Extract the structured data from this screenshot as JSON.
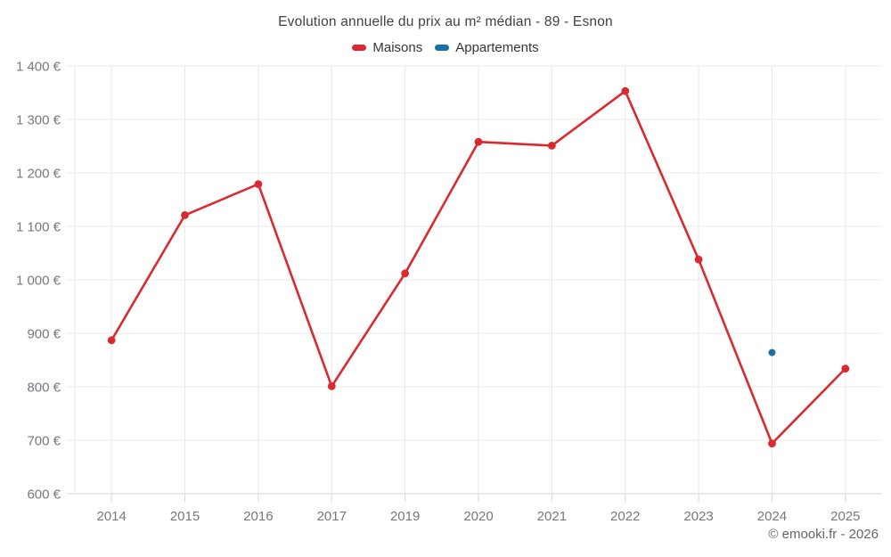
{
  "title": "Evolution annuelle du prix au m² médian - 89 - Esnon",
  "footer": "© emooki.fr - 2026",
  "legend": [
    {
      "label": "Maisons",
      "color": "#da2a2f"
    },
    {
      "label": "Appartements",
      "color": "#1d6fa5"
    }
  ],
  "colors": {
    "maisons_red": "#da2a2f",
    "appartements_blue": "#1d6fa5",
    "grid": "#e8e8e8",
    "axis": "#d6d6d6",
    "tick_label": "#75787c"
  },
  "chart_data": {
    "type": "line",
    "title": "Evolution annuelle du prix au m² médian - 89 - Esnon",
    "categories": [
      "2014",
      "2015",
      "2016",
      "2017",
      "2019",
      "2020",
      "2021",
      "2022",
      "2023",
      "2024",
      "2025"
    ],
    "series": [
      {
        "name": "Maisons",
        "type": "line",
        "color": "#da2a2f",
        "values": [
          887,
          1121,
          1179,
          801,
          1012,
          1258,
          1251,
          1353,
          1038,
          694,
          834
        ]
      },
      {
        "name": "Appartements",
        "type": "scatter",
        "color": "#1d6fa5",
        "values": [
          null,
          null,
          null,
          null,
          null,
          null,
          null,
          null,
          null,
          864,
          null
        ]
      }
    ],
    "ylim": [
      600,
      1400
    ],
    "ytick_step": 100,
    "y_tick_labels": [
      "600 €",
      "700 €",
      "800 €",
      "900 €",
      "1 000 €",
      "1 100 €",
      "1 200 €",
      "1 300 €",
      "1 400 €"
    ],
    "xlabel": "",
    "ylabel": "",
    "grid": true,
    "legend_position": "top"
  }
}
